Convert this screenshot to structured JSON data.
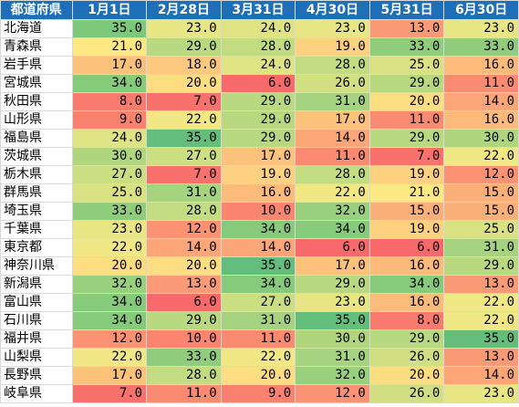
{
  "table": {
    "headers": [
      "都道府県",
      "1月1日",
      "2月28日",
      "3月31日",
      "4月30日",
      "5月31日",
      "6月30日"
    ],
    "rows": [
      {
        "pref": "北海道",
        "values": [
          "35.0",
          "23.0",
          "24.0",
          "23.0",
          "13.0",
          "23.0"
        ],
        "colors": [
          "#7ec87c",
          "#e8e585",
          "#e0e384",
          "#e8e585",
          "#fb9a76",
          "#e8e585"
        ]
      },
      {
        "pref": "青森県",
        "values": [
          "21.0",
          "29.0",
          "28.0",
          "19.0",
          "33.0",
          "33.0"
        ],
        "colors": [
          "#fde884",
          "#b8d980",
          "#c2dc81",
          "#fdd17f",
          "#8fcd7d",
          "#8fcd7d"
        ]
      },
      {
        "pref": "岩手県",
        "values": [
          "17.0",
          "18.0",
          "24.0",
          "28.0",
          "25.0",
          "16.0"
        ],
        "colors": [
          "#fcc27c",
          "#fdc97e",
          "#e0e384",
          "#c2dc81",
          "#d9e183",
          "#fcba7b"
        ]
      },
      {
        "pref": "宮城県",
        "values": [
          "34.0",
          "20.0",
          "6.0",
          "26.0",
          "29.0",
          "11.0"
        ],
        "colors": [
          "#86ca7c",
          "#fddd82",
          "#f8696b",
          "#d1df82",
          "#b8d980",
          "#fb8a72"
        ]
      },
      {
        "pref": "秋田県",
        "values": [
          "8.0",
          "7.0",
          "29.0",
          "31.0",
          "20.0",
          "14.0"
        ],
        "colors": [
          "#f97b6f",
          "#f8716d",
          "#b8d980",
          "#a5d37f",
          "#fddd82",
          "#fca577"
        ]
      },
      {
        "pref": "山形県",
        "values": [
          "9.0",
          "22.0",
          "29.0",
          "17.0",
          "11.0",
          "16.0"
        ],
        "colors": [
          "#fa8070",
          "#f2e785",
          "#b8d980",
          "#fcc27c",
          "#fb8a72",
          "#fcba7b"
        ]
      },
      {
        "pref": "福島県",
        "values": [
          "24.0",
          "35.0",
          "29.0",
          "14.0",
          "29.0",
          "30.0"
        ],
        "colors": [
          "#e0e384",
          "#63be7b",
          "#b8d980",
          "#fca577",
          "#b8d980",
          "#afd67f"
        ]
      },
      {
        "pref": "茨城県",
        "values": [
          "30.0",
          "27.0",
          "17.0",
          "11.0",
          "7.0",
          "22.0"
        ],
        "colors": [
          "#afd67f",
          "#cbde82",
          "#fcc27c",
          "#fb8a72",
          "#f8716d",
          "#f2e785"
        ]
      },
      {
        "pref": "栃木県",
        "values": [
          "27.0",
          "7.0",
          "19.0",
          "28.0",
          "19.0",
          "12.0"
        ],
        "colors": [
          "#cbde82",
          "#f8716d",
          "#fdd17f",
          "#c2dc81",
          "#fdd17f",
          "#fb9274"
        ]
      },
      {
        "pref": "群馬県",
        "values": [
          "25.0",
          "31.0",
          "16.0",
          "22.0",
          "21.0",
          "15.0"
        ],
        "colors": [
          "#d9e183",
          "#a5d37f",
          "#fcba7b",
          "#f2e785",
          "#fde884",
          "#fcb079"
        ]
      },
      {
        "pref": "埼玉県",
        "values": [
          "33.0",
          "28.0",
          "10.0",
          "32.0",
          "15.0",
          "15.0"
        ],
        "colors": [
          "#8fcd7d",
          "#c2dc81",
          "#fb8571",
          "#98d07e",
          "#fcb079",
          "#fcb079"
        ]
      },
      {
        "pref": "千葉県",
        "values": [
          "23.0",
          "12.0",
          "34.0",
          "34.0",
          "19.0",
          "25.0"
        ],
        "colors": [
          "#e8e585",
          "#fb9274",
          "#86ca7c",
          "#86ca7c",
          "#fdd17f",
          "#d9e183"
        ]
      },
      {
        "pref": "東京都",
        "values": [
          "22.0",
          "14.0",
          "14.0",
          "6.0",
          "6.0",
          "31.0"
        ],
        "colors": [
          "#f2e785",
          "#fca577",
          "#fca577",
          "#f8696b",
          "#f8696b",
          "#a5d37f"
        ]
      },
      {
        "pref": "神奈川県",
        "values": [
          "20.0",
          "20.0",
          "35.0",
          "17.0",
          "16.0",
          "29.0"
        ],
        "colors": [
          "#fddd82",
          "#fddd82",
          "#63be7b",
          "#fcc27c",
          "#fcba7b",
          "#b8d980"
        ]
      },
      {
        "pref": "新潟県",
        "values": [
          "32.0",
          "13.0",
          "34.0",
          "29.0",
          "34.0",
          "13.0"
        ],
        "colors": [
          "#98d07e",
          "#fb9a76",
          "#86ca7c",
          "#b8d980",
          "#86ca7c",
          "#fb9a76"
        ]
      },
      {
        "pref": "富山県",
        "values": [
          "34.0",
          "6.0",
          "27.0",
          "23.0",
          "16.0",
          "22.0"
        ],
        "colors": [
          "#86ca7c",
          "#f8696b",
          "#cbde82",
          "#e8e585",
          "#fcba7b",
          "#f2e785"
        ]
      },
      {
        "pref": "石川県",
        "values": [
          "34.0",
          "29.0",
          "31.0",
          "35.0",
          "8.0",
          "22.0"
        ],
        "colors": [
          "#86ca7c",
          "#b8d980",
          "#a5d37f",
          "#63be7b",
          "#f97b6f",
          "#f2e785"
        ]
      },
      {
        "pref": "福井県",
        "values": [
          "12.0",
          "10.0",
          "11.0",
          "30.0",
          "29.0",
          "35.0"
        ],
        "colors": [
          "#fb9274",
          "#fb8571",
          "#fb8a72",
          "#afd67f",
          "#b8d980",
          "#63be7b"
        ]
      },
      {
        "pref": "山梨県",
        "values": [
          "22.0",
          "33.0",
          "22.0",
          "31.0",
          "26.0",
          "13.0"
        ],
        "colors": [
          "#f2e785",
          "#8fcd7d",
          "#f2e785",
          "#a5d37f",
          "#d1df82",
          "#fb9a76"
        ]
      },
      {
        "pref": "長野県",
        "values": [
          "17.0",
          "28.0",
          "20.0",
          "32.0",
          "20.0",
          "14.0"
        ],
        "colors": [
          "#fcc27c",
          "#c2dc81",
          "#fddd82",
          "#98d07e",
          "#fddd82",
          "#fca577"
        ]
      },
      {
        "pref": "岐阜県",
        "values": [
          "7.0",
          "11.0",
          "9.0",
          "12.0",
          "26.0",
          "23.0"
        ],
        "colors": [
          "#f8716d",
          "#fb8a72",
          "#fa8070",
          "#fb9274",
          "#d1df82",
          "#e8e585"
        ]
      }
    ]
  }
}
